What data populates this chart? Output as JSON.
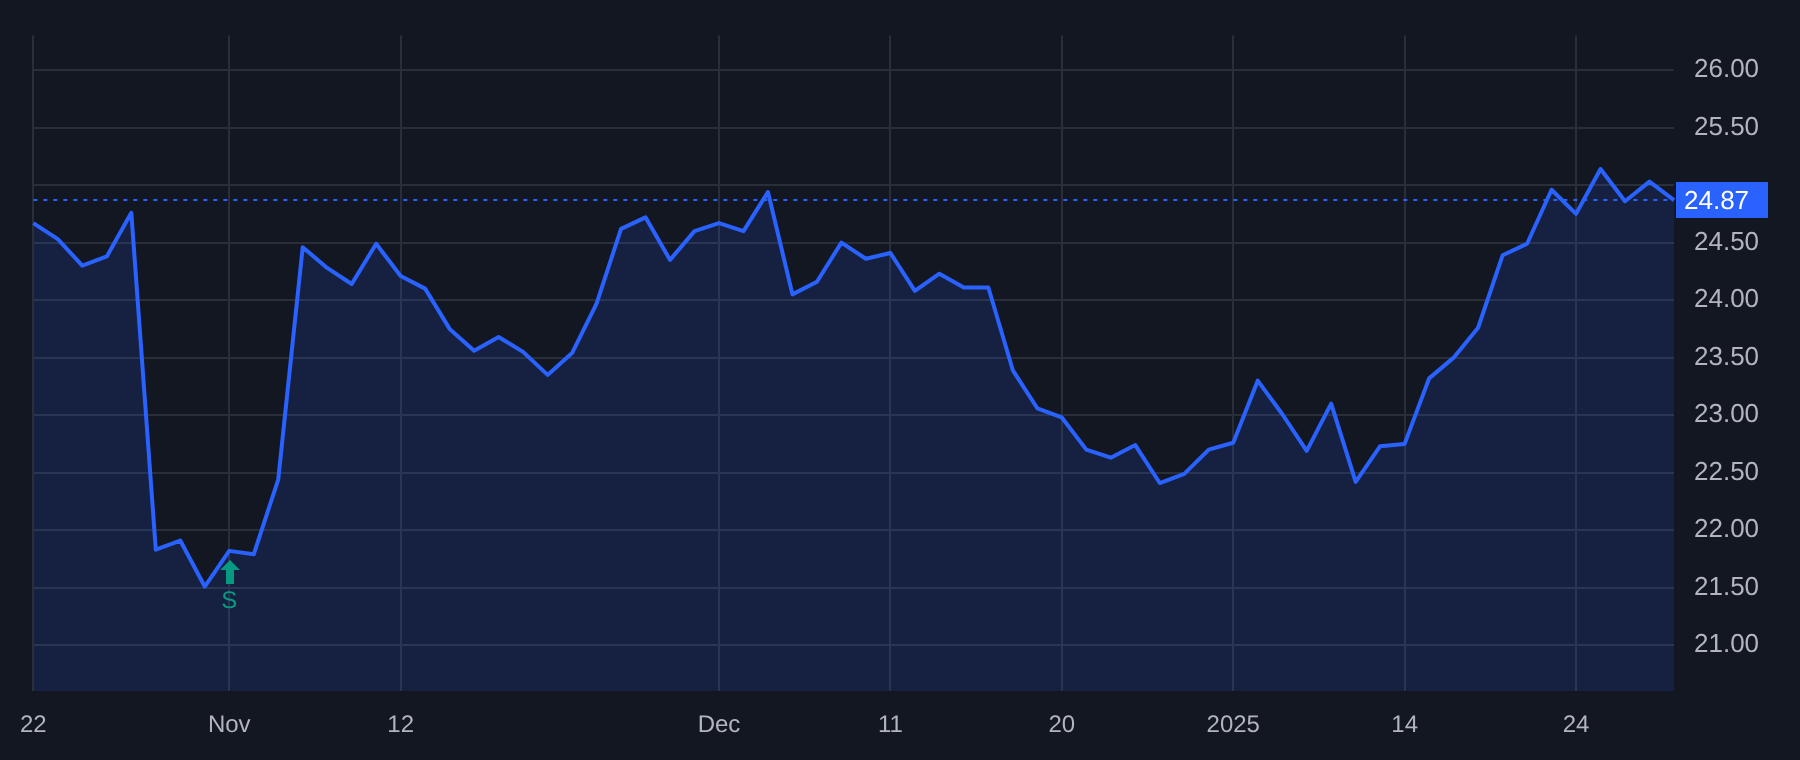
{
  "chart_data": {
    "type": "area",
    "categories": [
      "22",
      null,
      null,
      null,
      null,
      null,
      null,
      null,
      "Nov",
      null,
      null,
      null,
      null,
      null,
      null,
      "12",
      null,
      null,
      null,
      null,
      null,
      null,
      null,
      null,
      null,
      null,
      null,
      null,
      "Dec",
      null,
      null,
      null,
      null,
      null,
      null,
      "11",
      null,
      null,
      null,
      null,
      null,
      null,
      "20",
      null,
      null,
      null,
      null,
      null,
      null,
      "2025",
      null,
      null,
      null,
      null,
      null,
      null,
      "14",
      null,
      null,
      null,
      null,
      null,
      null,
      "24",
      null,
      null,
      null,
      null
    ],
    "series": [
      {
        "color": "#2962ff",
        "values": [
          24.67,
          24.53,
          24.3,
          24.38,
          24.76,
          21.83,
          21.91,
          21.51,
          21.82,
          21.79,
          22.44,
          24.46,
          24.28,
          24.14,
          24.49,
          24.21,
          24.1,
          23.75,
          23.56,
          23.68,
          23.55,
          23.35,
          23.54,
          23.97,
          24.62,
          24.72,
          24.35,
          24.6,
          24.67,
          24.6,
          24.94,
          24.05,
          24.16,
          24.5,
          24.36,
          24.41,
          24.08,
          24.23,
          24.11,
          24.11,
          23.39,
          23.06,
          22.98,
          22.7,
          22.63,
          22.74,
          22.41,
          22.49,
          22.7,
          22.76,
          23.3,
          23.01,
          22.69,
          23.1,
          22.42,
          22.73,
          22.75,
          23.32,
          23.5,
          23.76,
          24.39,
          24.49,
          24.96,
          24.75,
          25.14,
          24.86,
          25.03,
          24.87
        ]
      }
    ],
    "ylim": [
      20.6,
      26.3
    ],
    "yticks": [
      {
        "value": 21,
        "label": "21.00"
      },
      {
        "value": 21.5,
        "label": "21.50"
      },
      {
        "value": 22,
        "label": "22.00"
      },
      {
        "value": 22.5,
        "label": "22.50"
      },
      {
        "value": 23,
        "label": "23.00"
      },
      {
        "value": 23.5,
        "label": "23.50"
      },
      {
        "value": 24,
        "label": "24.00"
      },
      {
        "value": 24.5,
        "label": "24.50"
      },
      {
        "value": 25,
        "label": null
      },
      {
        "value": 25.5,
        "label": "25.50"
      },
      {
        "value": 26,
        "label": "26.00"
      }
    ],
    "ref_lines": [
      {
        "axis": "y",
        "value": 24.87,
        "label": "24.87",
        "color": "#2962ff",
        "line_style": "dotted"
      }
    ],
    "annotations": [
      {
        "text": "S",
        "x": "Nov",
        "y": 21.82
      }
    ],
    "grid": true,
    "legend": false,
    "marker": "none",
    "line_style": "solid"
  }
}
